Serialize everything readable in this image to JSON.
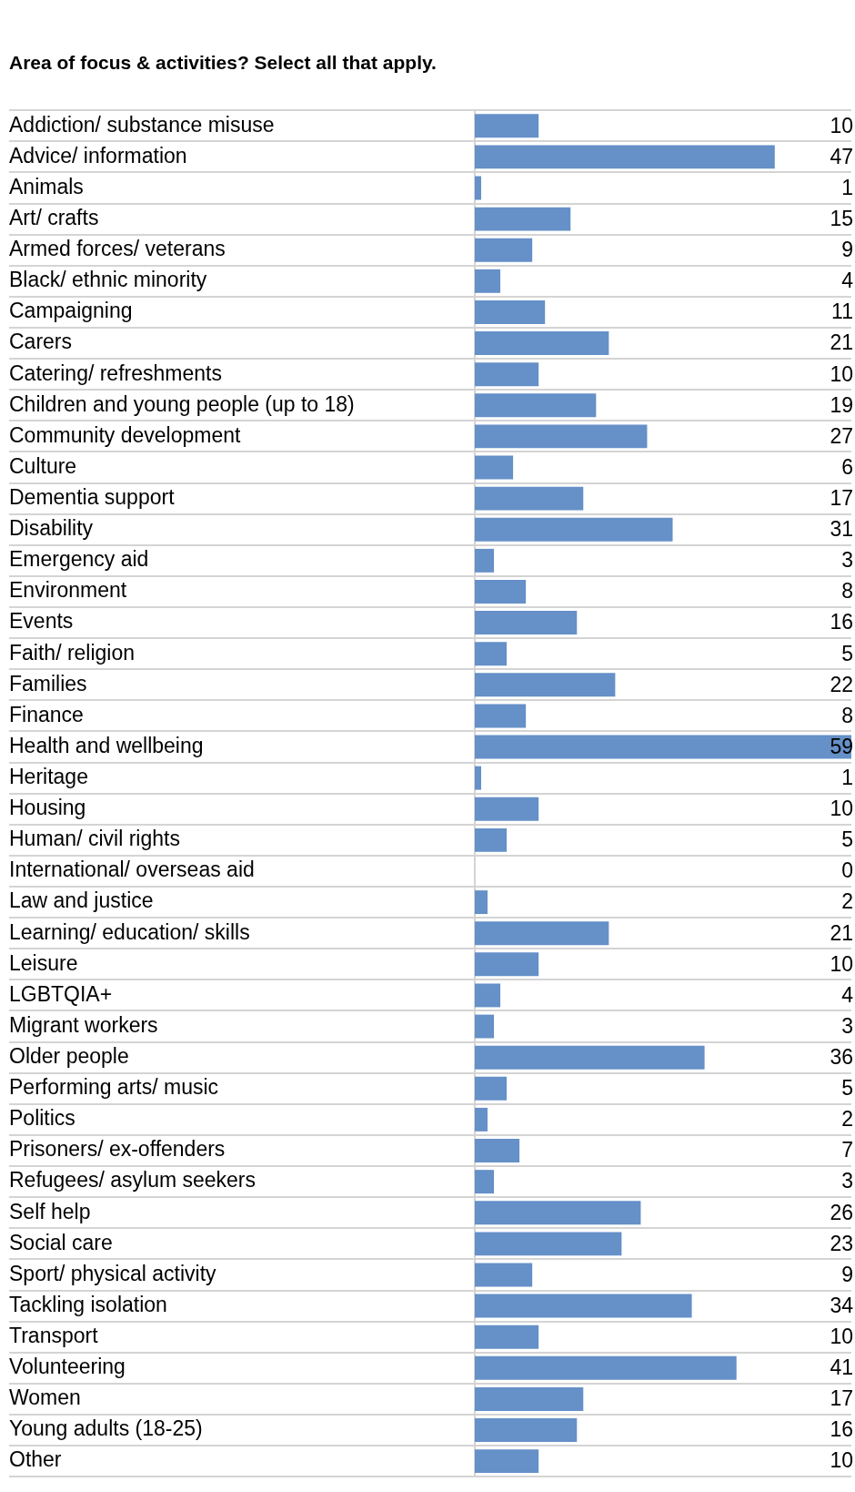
{
  "chart_data": {
    "type": "bar",
    "orientation": "horizontal",
    "title": "Area of focus & activities? Select all that apply.",
    "categories": [
      "Addiction/ substance misuse",
      "Advice/ information",
      "Animals",
      "Art/ crafts",
      "Armed forces/ veterans",
      "Black/ ethnic minority",
      "Campaigning",
      "Carers",
      "Catering/ refreshments",
      "Children and young people (up to 18)",
      "Community development",
      "Culture",
      "Dementia support",
      "Disability",
      "Emergency aid",
      "Environment",
      "Events",
      "Faith/ religion",
      "Families",
      "Finance",
      "Health and wellbeing",
      "Heritage",
      "Housing",
      "Human/ civil rights",
      "International/ overseas aid",
      "Law and justice",
      "Learning/ education/ skills",
      "Leisure",
      "LGBTQIA+",
      "Migrant workers",
      "Older people",
      "Performing arts/ music",
      "Politics",
      "Prisoners/ ex-offenders",
      "Refugees/ asylum seekers",
      "Self help",
      "Social care",
      "Sport/ physical activity",
      "Tackling isolation",
      "Transport",
      "Volunteering",
      "Women",
      "Young adults (18-25)",
      "Other"
    ],
    "values": [
      10,
      47,
      1,
      15,
      9,
      4,
      11,
      21,
      10,
      19,
      27,
      6,
      17,
      31,
      3,
      8,
      16,
      5,
      22,
      8,
      59,
      1,
      10,
      5,
      0,
      2,
      21,
      10,
      4,
      3,
      36,
      5,
      2,
      7,
      3,
      26,
      23,
      9,
      34,
      10,
      41,
      17,
      16,
      10
    ],
    "color": "#6590c8",
    "xlim": [
      0,
      59
    ],
    "data_labels": true,
    "grid": "y",
    "tick_labels": "y"
  }
}
